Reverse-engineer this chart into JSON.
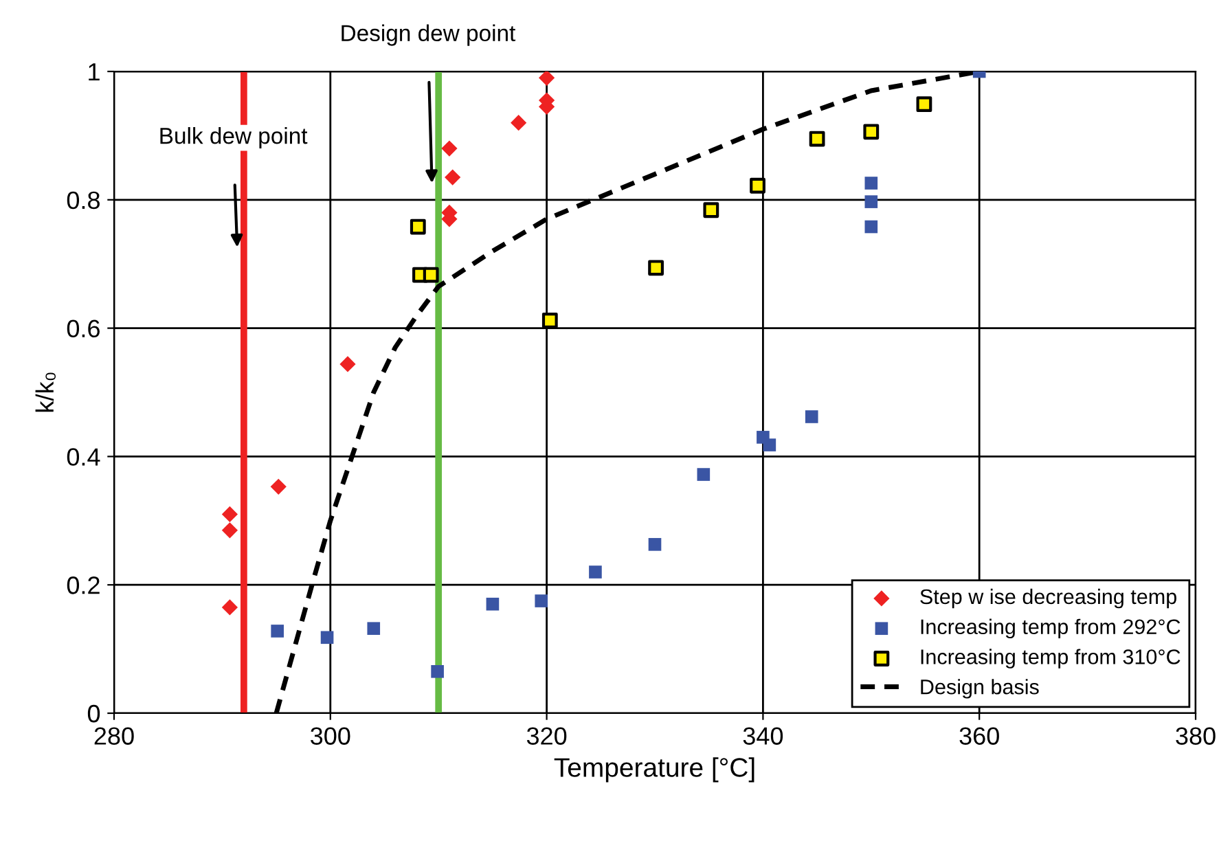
{
  "chart_data": {
    "type": "scatter",
    "xlabel": "Temperature [°C]",
    "ylabel": "k/k₀",
    "xlim": [
      280,
      380
    ],
    "xticks": [
      280,
      300,
      320,
      340,
      360,
      380
    ],
    "ylim": [
      0,
      1
    ],
    "yticks": [
      0,
      0.2,
      0.4,
      0.6,
      0.8,
      1
    ],
    "grid": true,
    "legend": "bottom right",
    "series": [
      {
        "name": "Step w ise decreasing temp",
        "color": "#ee2222",
        "marker": "diamond",
        "x": [
          290.7,
          290.7,
          290.7,
          295.2,
          301.6,
          311,
          311,
          311.3,
          311,
          317.4,
          320,
          320,
          320
        ],
        "values": [
          0.165,
          0.285,
          0.31,
          0.353,
          0.544,
          0.77,
          0.78,
          0.835,
          0.88,
          0.92,
          0.945,
          0.955,
          0.99
        ]
      },
      {
        "name": "Increasing temp from 292°C",
        "color": "#3a55a4",
        "marker": "square",
        "x": [
          295.1,
          299.7,
          304,
          309.9,
          315,
          319.5,
          324.5,
          330,
          334.5,
          340,
          340.6,
          344.5,
          350,
          350,
          350,
          360
        ],
        "values": [
          0.128,
          0.118,
          0.132,
          0.065,
          0.17,
          0.175,
          0.22,
          0.263,
          0.372,
          0.43,
          0.418,
          0.462,
          0.826,
          0.797,
          0.758,
          1.0
        ]
      },
      {
        "name": "Increasing temp from 310°C",
        "color": "#ffee00",
        "marker": "square",
        "x": [
          308.1,
          308.3,
          309.3,
          320.3,
          330.1,
          335.2,
          339.5,
          345,
          350,
          354.9
        ],
        "values": [
          0.758,
          0.683,
          0.683,
          0.612,
          0.694,
          0.784,
          0.822,
          0.895,
          0.906,
          0.949
        ]
      },
      {
        "name": "Design basis",
        "type": "line",
        "color": "#000000",
        "marker": "none",
        "line_style": "dashed",
        "x": [
          295,
          298.3,
          300,
          302,
          304,
          306,
          308,
          310,
          315,
          320,
          330,
          340,
          350,
          360
        ],
        "values": [
          0,
          0.2,
          0.3,
          0.4,
          0.5,
          0.57,
          0.62,
          0.665,
          0.72,
          0.77,
          0.84,
          0.91,
          0.97,
          1.0
        ]
      }
    ],
    "ref_lines": [
      {
        "axis": "x",
        "value": 292,
        "label": "Bulk dew point",
        "color": "#ee2222"
      },
      {
        "axis": "x",
        "value": 310,
        "label": "Design dew point",
        "color": "#66bb44"
      }
    ]
  }
}
